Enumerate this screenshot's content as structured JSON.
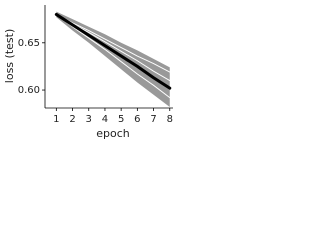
{
  "chart_data": {
    "type": "line",
    "x_label": "epoch",
    "y_label": "loss (test)",
    "x": [
      1,
      2,
      3,
      4,
      5,
      6,
      7,
      8
    ],
    "band": {
      "color": "#999999",
      "upper": [
        0.683,
        0.675,
        0.667,
        0.659,
        0.65,
        0.642,
        0.633,
        0.624
      ],
      "lower": [
        0.677,
        0.663,
        0.65,
        0.636,
        0.622,
        0.608,
        0.595,
        0.582
      ]
    },
    "series": [
      {
        "color": "#ffffff",
        "width": 1,
        "values": [
          0.68,
          0.671,
          0.663,
          0.654,
          0.645,
          0.636,
          0.628,
          0.619
        ]
      },
      {
        "color": "#ffffff",
        "width": 1,
        "values": [
          0.68,
          0.67,
          0.661,
          0.651,
          0.641,
          0.631,
          0.62,
          0.61
        ]
      },
      {
        "color": "#ffffff",
        "width": 1,
        "values": [
          0.68,
          0.667,
          0.655,
          0.643,
          0.63,
          0.617,
          0.605,
          0.592
        ]
      },
      {
        "color": "#000000",
        "width": 3,
        "values": [
          0.68,
          0.669,
          0.658,
          0.647,
          0.636,
          0.625,
          0.613,
          0.602
        ]
      }
    ],
    "xlim": [
      0.3,
      8.2
    ],
    "ylim": [
      0.581,
      0.69
    ],
    "xticks": [
      1,
      2,
      3,
      4,
      5,
      6,
      7,
      8
    ],
    "yticks": [
      {
        "value": 0.6,
        "label": "0.60"
      },
      {
        "value": 0.65,
        "label": "0.65"
      }
    ]
  }
}
